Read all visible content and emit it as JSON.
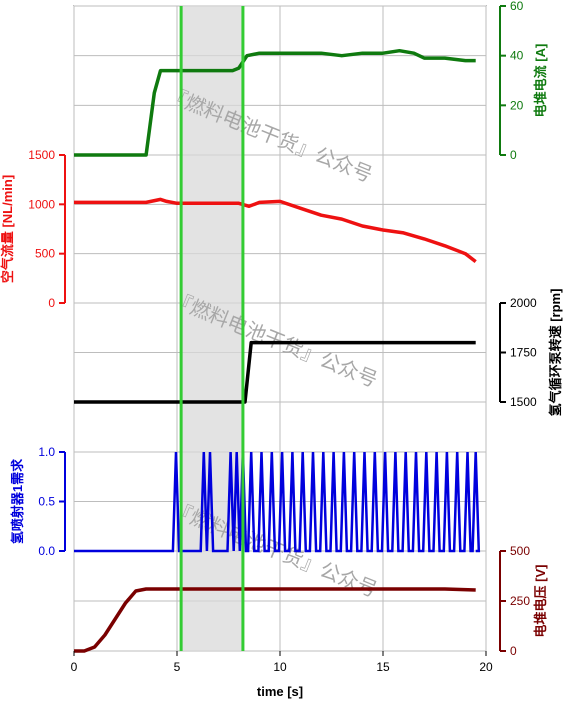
{
  "chart_data": {
    "type": "line",
    "xlabel": "time [s]",
    "xlim": [
      0,
      20
    ],
    "x_ticks": [
      "0",
      "5",
      "10",
      "15",
      "20"
    ],
    "shaded_band": {
      "x0": 5.2,
      "x1": 8.2
    },
    "markers": [
      5.2,
      8.2
    ],
    "watermark": "『燃料电池干货』公众号",
    "panels": [
      {
        "key": "current",
        "ylabel": "电堆电流 [A]",
        "axis": "right",
        "color": "#0f7a0f",
        "ylim": [
          0,
          60
        ],
        "ticks": [
          "0",
          "20",
          "40",
          "60"
        ],
        "series": [
          {
            "x": [
              0,
              3.5,
              3.9,
              4.2,
              5,
              6,
              7,
              7.7,
              8,
              8.4,
              9,
              10,
              11,
              12,
              13,
              14,
              15,
              15.8,
              16.5,
              17,
              18,
              19,
              19.5
            ],
            "y": [
              0,
              0,
              25,
              34,
              34,
              34,
              34,
              34,
              35,
              40,
              41,
              41,
              41,
              41,
              40,
              41,
              41,
              42,
              41,
              39,
              39,
              38,
              38
            ]
          }
        ]
      },
      {
        "key": "air",
        "ylabel": "空气流量 [NL/min]",
        "axis": "left",
        "color": "#ee1111",
        "ylim": [
          0,
          1500
        ],
        "ticks": [
          "0",
          "500",
          "1000",
          "1500"
        ],
        "series": [
          {
            "x": [
              0,
              2,
              3.5,
              4.2,
              4.5,
              5,
              6,
              7,
              8,
              8.5,
              9,
              10,
              11,
              12,
              13,
              14,
              15,
              16,
              17,
              18,
              19,
              19.5
            ],
            "y": [
              1020,
              1020,
              1020,
              1050,
              1030,
              1010,
              1010,
              1010,
              1010,
              980,
              1020,
              1030,
              960,
              890,
              850,
              780,
              740,
              710,
              650,
              580,
              500,
              420
            ]
          }
        ]
      },
      {
        "key": "pump",
        "ylabel": "氢气循环泵转速 [rpm]",
        "axis": "right",
        "color": "#000000",
        "ylim": [
          1500,
          2000
        ],
        "ticks": [
          "1500",
          "1750",
          "2000"
        ],
        "series": [
          {
            "x": [
              0,
              5,
              5.1,
              8,
              8.3,
              8.6,
              9,
              10,
              12,
              14,
              16,
              18,
              19.5
            ],
            "y": [
              1500,
              1500,
              1500,
              1500,
              1500,
              1800,
              1800,
              1800,
              1800,
              1800,
              1800,
              1800,
              1800
            ]
          }
        ]
      },
      {
        "key": "injector",
        "ylabel": "氢喷射器1需求",
        "axis": "left",
        "color": "#0000dd",
        "ylim": [
          0,
          1
        ],
        "ticks": [
          "0.0",
          "0.5",
          "1.0"
        ],
        "pulses": [
          4.95,
          6.3,
          6.6,
          7.6,
          7.9,
          8.2,
          8.6,
          9.1,
          9.6,
          10.1,
          10.6,
          11.1,
          11.6,
          12.1,
          12.6,
          13.1,
          13.6,
          14.1,
          14.6,
          15.1,
          15.6,
          16.1,
          16.6,
          17.1,
          17.6,
          18.1,
          18.6,
          19.1,
          19.5
        ]
      },
      {
        "key": "voltage",
        "ylabel": "电堆电压 [V]",
        "axis": "right",
        "color": "#7a0000",
        "ylim": [
          0,
          500
        ],
        "ticks": [
          "0",
          "250",
          "500"
        ],
        "series": [
          {
            "x": [
              0,
              0.5,
              1,
              1.5,
              2,
              2.5,
              3,
              3.5,
              4,
              6,
              8,
              10,
              12,
              14,
              16,
              18,
              19.5
            ],
            "y": [
              0,
              0,
              20,
              80,
              160,
              240,
              300,
              310,
              310,
              310,
              310,
              310,
              310,
              310,
              310,
              310,
              305
            ]
          }
        ]
      }
    ]
  }
}
